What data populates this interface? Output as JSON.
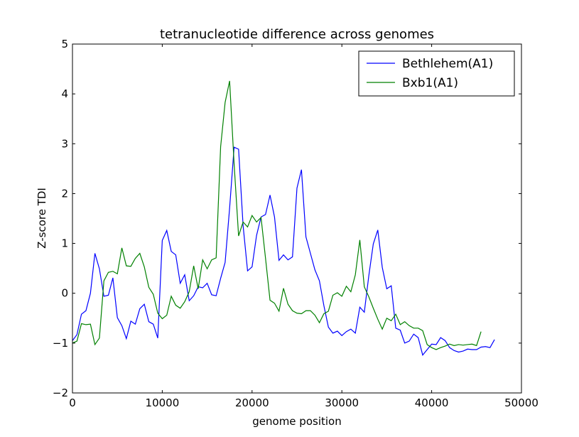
{
  "chart_data": {
    "type": "line",
    "title": "tetranucleotide difference across genomes",
    "xlabel": "genome position",
    "ylabel": "Z-score TDI",
    "xlim": [
      0,
      50000
    ],
    "ylim": [
      -2,
      5
    ],
    "xticks": [
      0,
      10000,
      20000,
      30000,
      40000,
      50000
    ],
    "yticks": [
      -2,
      -1,
      0,
      1,
      2,
      3,
      4,
      5
    ],
    "grid": false,
    "legend_position": "top-right",
    "series": [
      {
        "name": "Bethlehem(A1)",
        "color": "#0000ff",
        "x": [
          0,
          500,
          1000,
          1500,
          2000,
          2500,
          3000,
          3500,
          4000,
          4500,
          5000,
          5500,
          6000,
          6500,
          7000,
          7500,
          8000,
          8500,
          9000,
          9500,
          10000,
          10500,
          11000,
          11500,
          12000,
          12500,
          13000,
          13500,
          14000,
          14500,
          15000,
          15500,
          16000,
          16500,
          17000,
          17500,
          18000,
          18500,
          19000,
          19500,
          20000,
          20500,
          21000,
          21500,
          22000,
          22500,
          23000,
          23500,
          24000,
          24500,
          25000,
          25500,
          26000,
          26500,
          27000,
          27500,
          28000,
          28500,
          29000,
          29500,
          30000,
          30500,
          31000,
          31500,
          32000,
          32500,
          33000,
          33500,
          34000,
          34500,
          35000,
          35500,
          36000,
          36500,
          37000,
          37500,
          38000,
          38500,
          39000,
          39500,
          40000,
          40500,
          41000,
          41500,
          42000,
          42500,
          43000,
          43500,
          44000,
          44500,
          45000,
          45500,
          46000,
          46500,
          47000
        ],
        "y": [
          -0.95,
          -0.83,
          -0.42,
          -0.35,
          0.0,
          0.8,
          0.49,
          -0.06,
          -0.04,
          0.31,
          -0.49,
          -0.65,
          -0.91,
          -0.56,
          -0.62,
          -0.31,
          -0.22,
          -0.57,
          -0.62,
          -0.9,
          1.06,
          1.26,
          0.84,
          0.77,
          0.2,
          0.37,
          -0.15,
          -0.05,
          0.13,
          0.11,
          0.2,
          -0.03,
          -0.05,
          0.3,
          0.62,
          1.71,
          2.93,
          2.89,
          1.36,
          0.45,
          0.53,
          1.16,
          1.53,
          1.58,
          1.97,
          1.53,
          0.66,
          0.77,
          0.67,
          0.73,
          2.11,
          2.48,
          1.13,
          0.8,
          0.47,
          0.25,
          -0.25,
          -0.68,
          -0.8,
          -0.76,
          -0.85,
          -0.77,
          -0.72,
          -0.8,
          -0.28,
          -0.38,
          0.35,
          0.99,
          1.27,
          0.52,
          0.09,
          0.15,
          -0.7,
          -0.74,
          -1.0,
          -0.96,
          -0.82,
          -0.89,
          -1.24,
          -1.13,
          -1.02,
          -1.03,
          -0.89,
          -0.95,
          -1.09,
          -1.15,
          -1.18,
          -1.16,
          -1.12,
          -1.13,
          -1.13,
          -1.08,
          -1.07,
          -1.09,
          -0.93
        ]
      },
      {
        "name": "Bxb1(A1)",
        "color": "#008000",
        "x": [
          0,
          500,
          1000,
          1500,
          2000,
          2500,
          3000,
          3500,
          4000,
          4500,
          5000,
          5500,
          6000,
          6500,
          7000,
          7500,
          8000,
          8500,
          9000,
          9500,
          10000,
          10500,
          11000,
          11500,
          12000,
          12500,
          13000,
          13500,
          14000,
          14500,
          15000,
          15500,
          16000,
          16500,
          17000,
          17500,
          18000,
          18500,
          19000,
          19500,
          20000,
          20500,
          21000,
          21500,
          22000,
          22500,
          23000,
          23500,
          24000,
          24500,
          25000,
          25500,
          26000,
          26500,
          27000,
          27500,
          28000,
          28500,
          29000,
          29500,
          30000,
          30500,
          31000,
          31500,
          32000,
          32500,
          33000,
          33500,
          34000,
          34500,
          35000,
          35500,
          36000,
          36500,
          37000,
          37500,
          38000,
          38500,
          39000,
          39500,
          40000,
          40500,
          41000,
          41500,
          42000,
          42500,
          43000,
          43500,
          44000,
          44500,
          45000,
          45500
        ],
        "y": [
          -1.0,
          -0.96,
          -0.61,
          -0.63,
          -0.62,
          -1.03,
          -0.9,
          0.25,
          0.42,
          0.44,
          0.39,
          0.91,
          0.55,
          0.54,
          0.7,
          0.8,
          0.53,
          0.12,
          -0.02,
          -0.4,
          -0.51,
          -0.44,
          -0.06,
          -0.24,
          -0.3,
          -0.17,
          0.03,
          0.55,
          0.09,
          0.67,
          0.49,
          0.67,
          0.71,
          2.94,
          3.83,
          4.26,
          2.6,
          1.15,
          1.43,
          1.33,
          1.56,
          1.43,
          1.52,
          0.7,
          -0.14,
          -0.2,
          -0.36,
          0.1,
          -0.22,
          -0.35,
          -0.4,
          -0.41,
          -0.35,
          -0.35,
          -0.44,
          -0.59,
          -0.41,
          -0.36,
          -0.04,
          0.01,
          -0.06,
          0.14,
          0.03,
          0.37,
          1.07,
          0.13,
          -0.07,
          -0.3,
          -0.52,
          -0.72,
          -0.5,
          -0.55,
          -0.42,
          -0.63,
          -0.57,
          -0.65,
          -0.7,
          -0.7,
          -0.75,
          -1.03,
          -1.09,
          -1.13,
          -1.09,
          -1.06,
          -1.02,
          -1.05,
          -1.03,
          -1.04,
          -1.03,
          -1.02,
          -1.05,
          -0.77
        ]
      }
    ]
  }
}
